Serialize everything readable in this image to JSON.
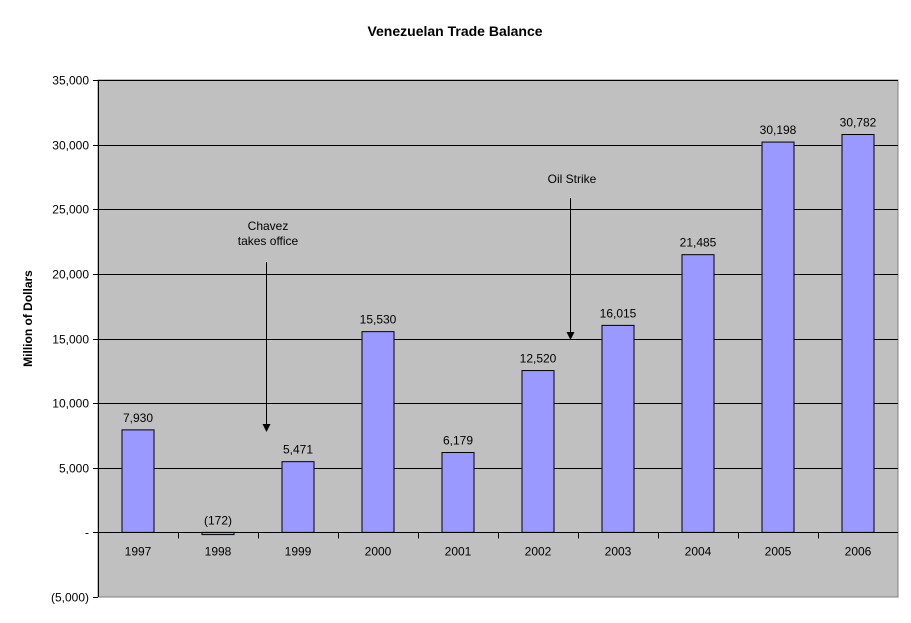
{
  "chart_data": {
    "type": "bar",
    "title": "Venezuelan Trade Balance",
    "xlabel": "",
    "ylabel": "Million of Dollars",
    "categories": [
      "1997",
      "1998",
      "1999",
      "2000",
      "2001",
      "2002",
      "2003",
      "2004",
      "2005",
      "2006"
    ],
    "values": [
      7930,
      -172,
      5471,
      15530,
      6179,
      12520,
      16015,
      21485,
      30198,
      30782
    ],
    "value_labels": [
      "7,930",
      "(172)",
      "5,471",
      "15,530",
      "6,179",
      "12,520",
      "16,015",
      "21,485",
      "30,198",
      "30,782"
    ],
    "ylim": [
      -5000,
      35000
    ],
    "yticks": [
      -5000,
      0,
      5000,
      10000,
      15000,
      20000,
      25000,
      30000,
      35000
    ],
    "ytick_labels": [
      "(5,000)",
      "-",
      "5,000",
      "10,000",
      "15,000",
      "20,000",
      "25,000",
      "30,000",
      "35,000"
    ],
    "grid": true,
    "legend": "none",
    "annotations": [
      {
        "lines": [
          "Chavez",
          "takes office"
        ],
        "category": "1999",
        "position": "before",
        "arrow_to": 5471
      },
      {
        "lines": [
          "Oil Strike"
        ],
        "category": "2003",
        "position": "before",
        "arrow_to": 16015
      }
    ],
    "colors": {
      "bar": "#9999ff",
      "bar_edge": "#000000",
      "plot_bg": "#c0c0c0",
      "grid": "#000000"
    }
  }
}
